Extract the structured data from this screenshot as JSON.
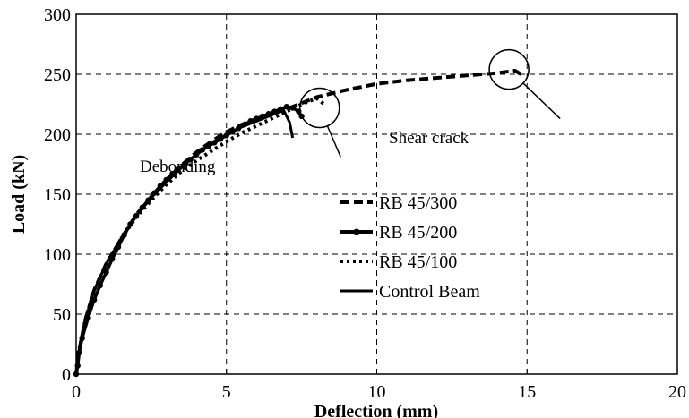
{
  "chart_data": {
    "type": "line",
    "title": "",
    "xlabel": "Deflection (mm)",
    "ylabel": "Load (kN)",
    "xlim": [
      0,
      20
    ],
    "ylim": [
      0,
      300
    ],
    "xticks": [
      0,
      5,
      10,
      15,
      20
    ],
    "yticks": [
      0,
      50,
      100,
      150,
      200,
      250,
      300
    ],
    "grid": true,
    "legend_position": "center",
    "series": [
      {
        "name": "RB 45/300",
        "style": "dashed",
        "x": [
          0,
          0.1,
          0.3,
          0.6,
          1.0,
          1.5,
          2.0,
          2.5,
          3.0,
          3.5,
          4.0,
          4.5,
          5.0,
          5.5,
          6.0,
          6.5,
          7.0,
          7.5,
          8.0,
          9.0,
          10.0,
          11.0,
          12.0,
          13.0,
          14.0,
          14.6,
          14.8
        ],
        "y": [
          0,
          20,
          45,
          70,
          92,
          113,
          133,
          148,
          162,
          174,
          185,
          194,
          202,
          208,
          213,
          217,
          221,
          226,
          231,
          237,
          242,
          245,
          247,
          249,
          251,
          253,
          250
        ]
      },
      {
        "name": "RB 45/200",
        "style": "solid-marker",
        "x": [
          0,
          0.05,
          0.1,
          0.2,
          0.4,
          0.6,
          0.8,
          1.0,
          1.2,
          1.4,
          1.6,
          1.8,
          2.0,
          2.2,
          2.4,
          2.6,
          2.8,
          3.0,
          3.2,
          3.4,
          3.6,
          3.8,
          4.0,
          4.2,
          4.4,
          4.6,
          4.8,
          5.0,
          5.2,
          5.4,
          5.6,
          5.8,
          6.0,
          6.2,
          6.4,
          6.6,
          6.8,
          7.0,
          7.2,
          7.4,
          7.5
        ],
        "y": [
          0,
          7,
          18,
          30,
          47,
          62,
          74,
          85,
          96,
          106,
          116,
          125,
          132,
          139,
          145,
          151,
          157,
          162,
          167,
          171,
          175,
          179,
          183,
          187,
          190,
          193,
          196,
          199,
          202,
          205,
          208,
          211,
          213,
          215,
          217,
          219,
          221,
          223,
          222,
          219,
          215
        ]
      },
      {
        "name": "RB 45/100",
        "style": "dotted",
        "x": [
          0,
          0.1,
          0.3,
          0.6,
          1.0,
          1.5,
          2.0,
          2.5,
          3.0,
          3.5,
          4.0,
          4.5,
          5.0,
          5.5,
          6.0,
          6.5,
          7.0,
          7.5,
          8.0,
          8.3
        ],
        "y": [
          0,
          20,
          45,
          70,
          92,
          113,
          131,
          145,
          158,
          169,
          178,
          186,
          194,
          201,
          207,
          213,
          219,
          225,
          230,
          224
        ]
      },
      {
        "name": "Control Beam",
        "style": "solid",
        "x": [
          0,
          0.1,
          0.3,
          0.6,
          1.0,
          1.5,
          2.0,
          2.5,
          3.0,
          3.5,
          4.0,
          4.5,
          5.0,
          5.5,
          6.0,
          6.5,
          6.9,
          7.1,
          7.2
        ],
        "y": [
          0,
          20,
          45,
          70,
          92,
          113,
          132,
          147,
          160,
          172,
          183,
          192,
          200,
          206,
          211,
          216,
          220,
          210,
          197
        ]
      }
    ],
    "annotations": [
      {
        "text": "Debonding",
        "x": 2.1,
        "y": 171
      },
      {
        "text": "Shear crack",
        "x": 10.4,
        "y": 197
      }
    ],
    "markers": [
      {
        "type": "circle",
        "x": 8.1,
        "y": 222,
        "leader_to": [
          8.8,
          181
        ]
      },
      {
        "type": "circle",
        "x": 14.4,
        "y": 254,
        "leader_to": [
          16.1,
          213
        ]
      }
    ]
  }
}
